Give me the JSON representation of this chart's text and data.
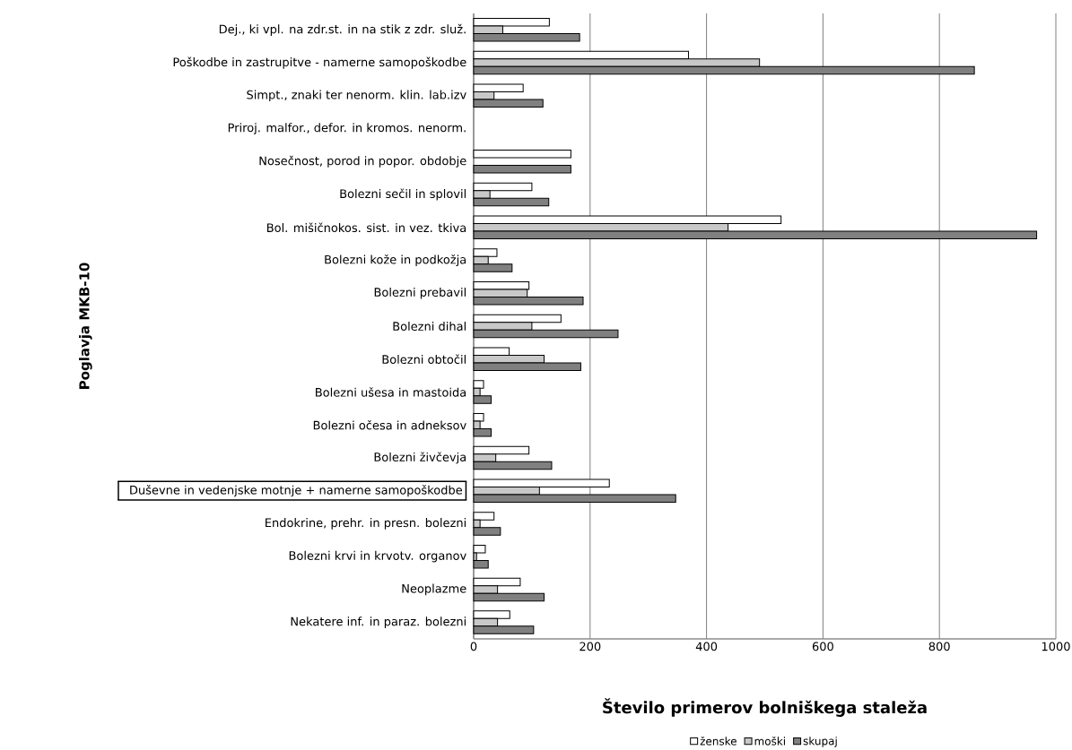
{
  "chart_data": {
    "type": "bar",
    "orientation": "horizontal",
    "xlabel": "Število primerov bolniškega staleža",
    "ylabel": "Poglavja MKB-10",
    "categories": [
      "Dej., ki vpl. na zdr.st. in na stik z zdr. služ.",
      "Poškodbe in zastrupitve - namerne samopoškodbe",
      "Simpt., znaki ter nenorm. klin. lab.izv",
      "Priroj. malfor., defor. in kromos. nenorm.",
      "Nosečnost, porod in popor. obdobje",
      "Bolezni sečil in splovil",
      "Bol. mišičnokos. sist. in vez. tkiva",
      "Bolezni kože in podkožja",
      "Bolezni prebavil",
      "Bolezni dihal",
      "Bolezni obtočil",
      "Bolezni ušesa in mastoida",
      "Bolezni očesa in adneksov",
      "Bolezni živčevja",
      "Duševne in vedenjske motnje + namerne samopoškodbe",
      "Endokrine, prehr. in presn. bolezni",
      "Bolezni krvi in krvotv. organov",
      "Neoplazme",
      "Nekatere inf. in paraz. bolezni"
    ],
    "series": [
      {
        "name": "ženske",
        "color": "#ffffff",
        "values": [
          130,
          369,
          85,
          null,
          167,
          100,
          528,
          40,
          95,
          150,
          61,
          17,
          17,
          95,
          233,
          35,
          20,
          80,
          62
        ]
      },
      {
        "name": "moški",
        "color": "#c8c8c8",
        "values": [
          50,
          491,
          35,
          null,
          null,
          28,
          437,
          25,
          92,
          100,
          121,
          11,
          11,
          38,
          113,
          11,
          5,
          41,
          41
        ]
      },
      {
        "name": "skupaj",
        "color": "#808080",
        "values": [
          182,
          860,
          119,
          null,
          167,
          129,
          967,
          66,
          188,
          248,
          184,
          30,
          30,
          134,
          347,
          46,
          25,
          121,
          103
        ]
      }
    ],
    "xlim": [
      0,
      1000
    ],
    "xticks": [
      0,
      200,
      400,
      600,
      800,
      1000
    ],
    "grid": "x",
    "legend": "bottom"
  }
}
